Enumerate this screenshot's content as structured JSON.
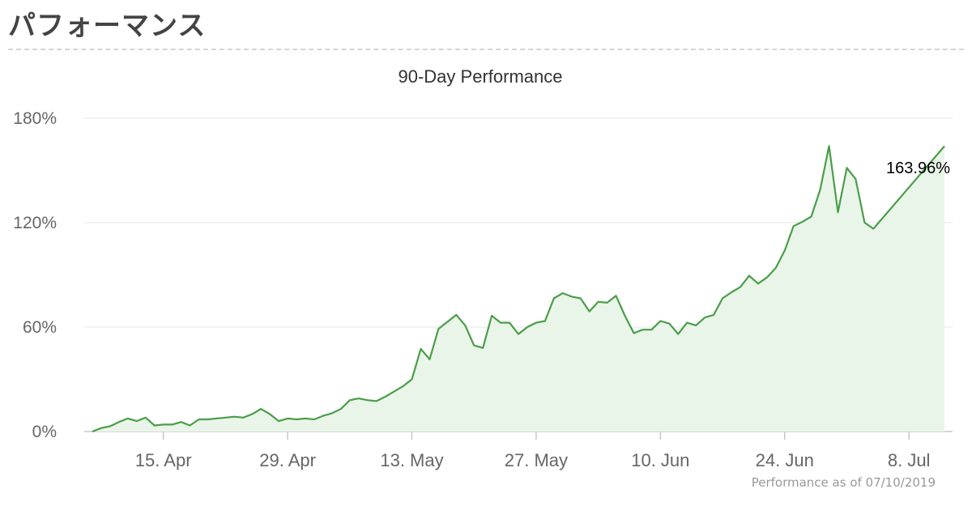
{
  "page": {
    "heading": "パフォーマンス"
  },
  "chart_data": {
    "type": "area",
    "title": "90-Day Performance",
    "xlabel": "",
    "ylabel": "",
    "ylim": [
      0,
      180
    ],
    "y_ticks": [
      "0%",
      "60%",
      "120%",
      "180%"
    ],
    "y_tick_values": [
      0,
      60,
      120,
      180
    ],
    "x_ticks": [
      "15. Apr",
      "29. Apr",
      "13. May",
      "27. May",
      "10. Jun",
      "24. Jun",
      "8. Jul"
    ],
    "x_tick_days": [
      8,
      22,
      36,
      50,
      64,
      78,
      92
    ],
    "grid": true,
    "legend": "none",
    "line_color": "#4a9e48",
    "fill_color": "#eaf5ea",
    "end_label": "163.96%",
    "credit": "Performance as of 07/10/2019",
    "series": [
      {
        "values": [
          [
            0,
            0
          ],
          [
            1,
            2
          ],
          [
            2,
            3
          ],
          [
            3,
            5.5
          ],
          [
            4,
            7.5
          ],
          [
            5,
            6
          ],
          [
            6,
            8
          ],
          [
            7,
            3.5
          ],
          [
            8,
            4
          ],
          [
            9,
            4
          ],
          [
            10,
            5.5
          ],
          [
            11,
            3.5
          ],
          [
            12,
            7
          ],
          [
            13,
            7
          ],
          [
            14,
            7.5
          ],
          [
            15,
            8
          ],
          [
            16,
            8.5
          ],
          [
            17,
            8
          ],
          [
            18,
            10
          ],
          [
            19,
            13
          ],
          [
            20,
            10
          ],
          [
            21,
            6
          ],
          [
            22,
            7.5
          ],
          [
            23,
            7
          ],
          [
            24,
            7.5
          ],
          [
            25,
            7
          ],
          [
            26,
            9
          ],
          [
            27,
            10.5
          ],
          [
            28,
            13
          ],
          [
            29,
            18
          ],
          [
            30,
            19
          ],
          [
            31,
            18
          ],
          [
            32,
            17.5
          ],
          [
            33,
            20
          ],
          [
            34,
            23
          ],
          [
            35,
            26
          ],
          [
            36,
            30
          ],
          [
            37,
            47.5
          ],
          [
            38,
            41.5
          ],
          [
            39,
            59
          ],
          [
            40,
            63
          ],
          [
            41,
            67
          ],
          [
            42,
            61
          ],
          [
            43,
            49.5
          ],
          [
            44,
            48
          ],
          [
            45,
            66.5
          ],
          [
            46,
            62.5
          ],
          [
            47,
            62.5
          ],
          [
            48,
            56
          ],
          [
            49,
            60
          ],
          [
            50,
            62.5
          ],
          [
            51,
            63.5
          ],
          [
            52,
            76.5
          ],
          [
            53,
            79.5
          ],
          [
            54,
            77.5
          ],
          [
            55,
            76.5
          ],
          [
            56,
            69
          ],
          [
            57,
            74.5
          ],
          [
            58,
            74
          ],
          [
            59,
            78
          ],
          [
            60,
            66.5
          ],
          [
            61,
            56.5
          ],
          [
            62,
            58.5
          ],
          [
            63,
            58.5
          ],
          [
            64,
            63.5
          ],
          [
            65,
            62
          ],
          [
            66,
            56
          ],
          [
            67,
            62.5
          ],
          [
            68,
            61
          ],
          [
            69,
            65.5
          ],
          [
            70,
            67
          ],
          [
            71,
            76.5
          ],
          [
            72,
            80
          ],
          [
            73,
            83
          ],
          [
            74,
            89.5
          ],
          [
            75,
            85
          ],
          [
            76,
            88.5
          ],
          [
            77,
            94
          ],
          [
            78,
            104
          ],
          [
            79,
            118
          ],
          [
            80,
            120.5
          ],
          [
            81,
            123.5
          ],
          [
            82,
            139
          ],
          [
            83,
            164
          ],
          [
            84,
            126
          ],
          [
            85,
            151.5
          ],
          [
            86,
            145
          ],
          [
            87,
            120
          ],
          [
            88,
            116.5
          ],
          [
            96,
            163.96
          ]
        ]
      }
    ]
  }
}
